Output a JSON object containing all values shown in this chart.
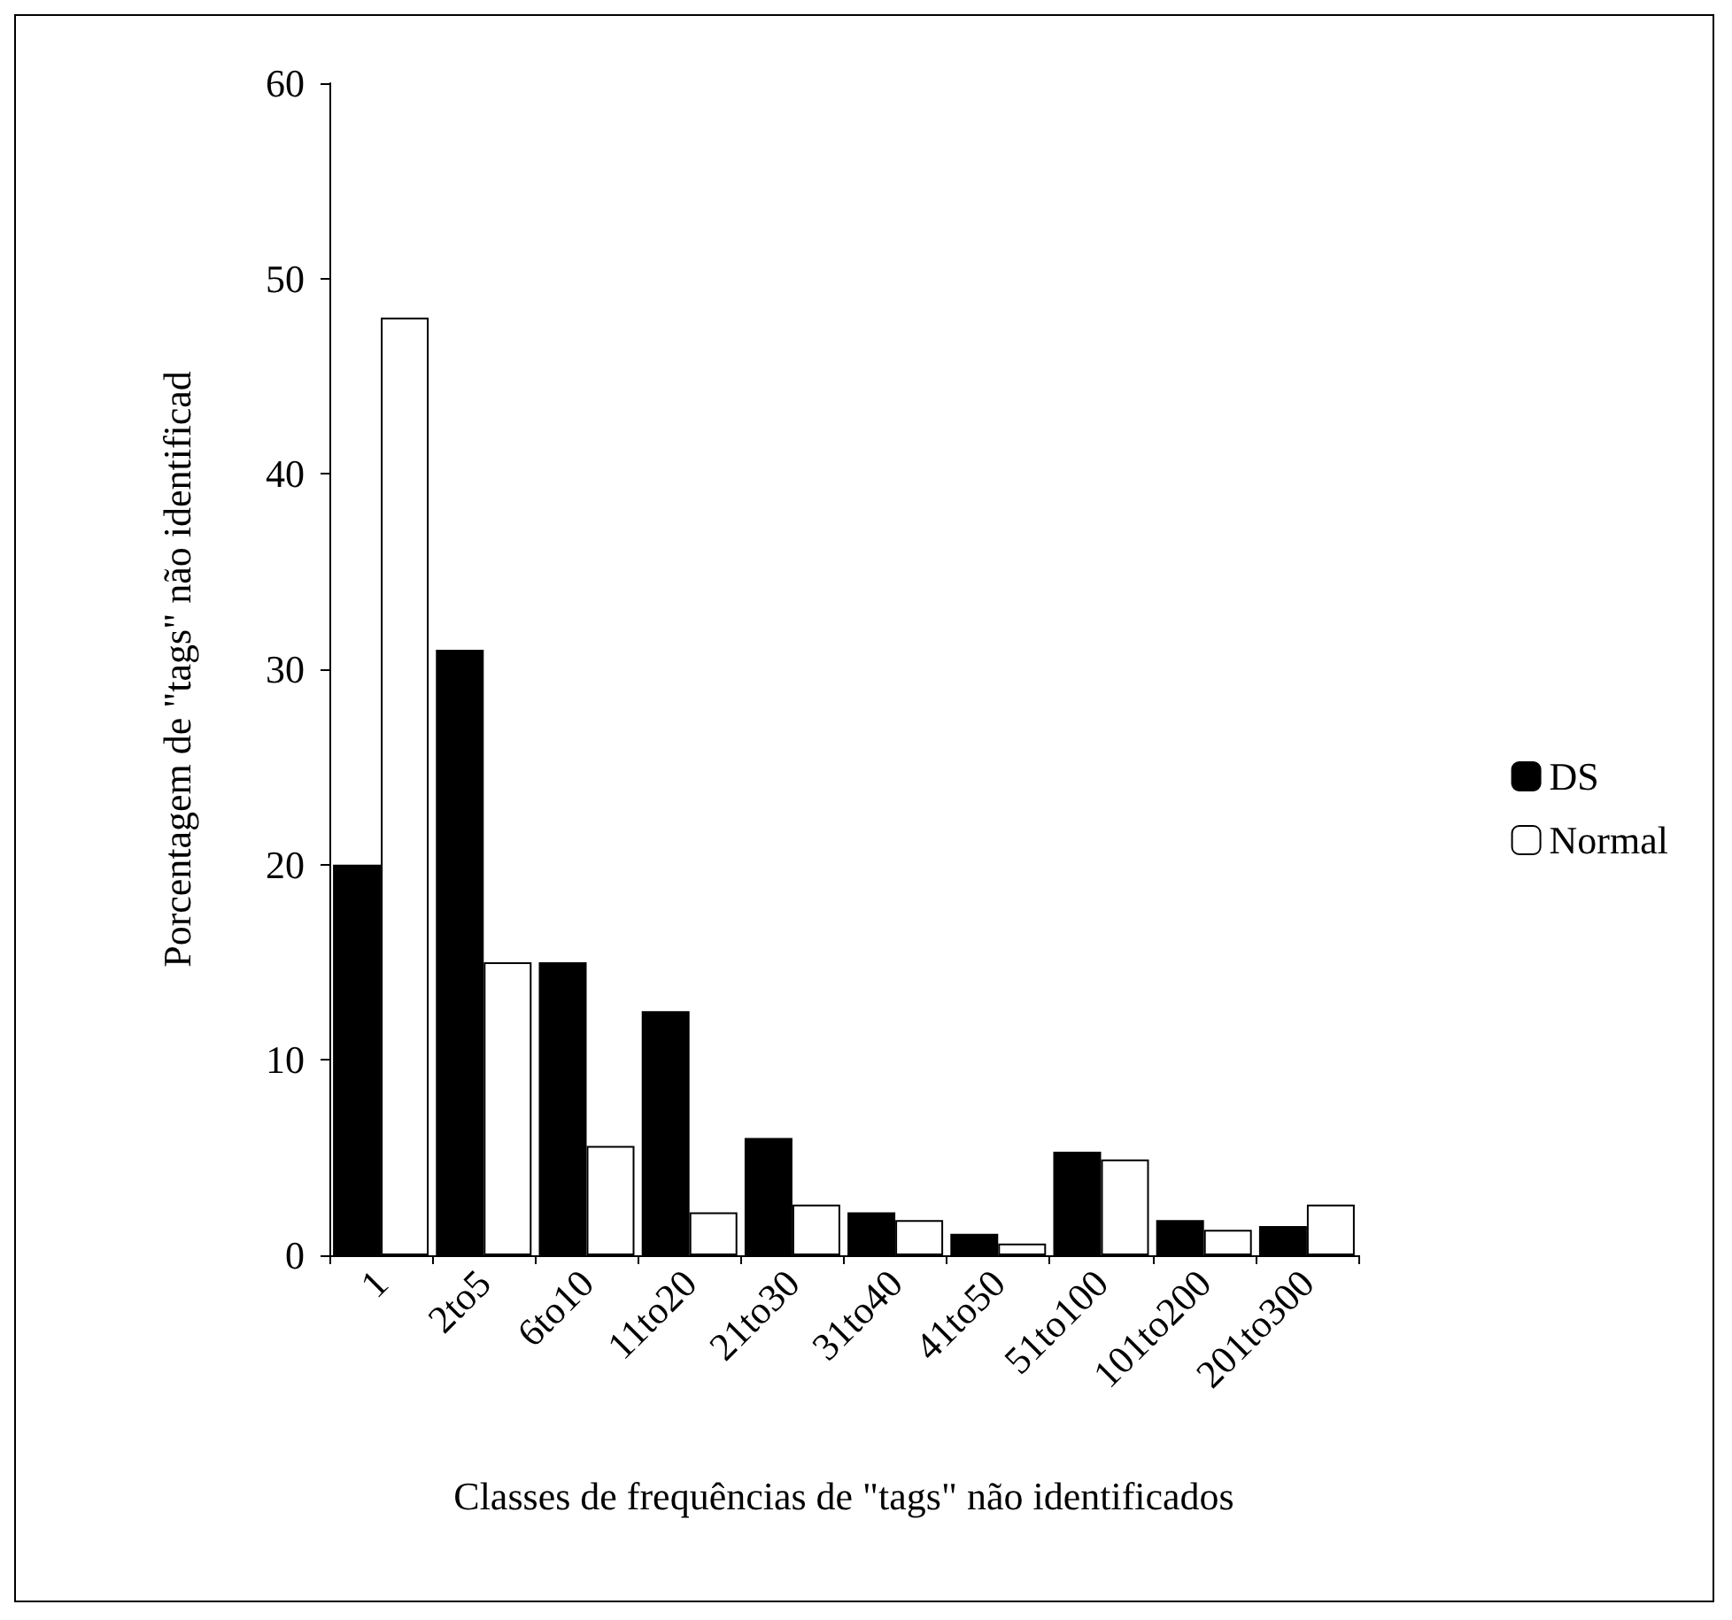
{
  "chart_data": {
    "type": "bar",
    "xlabel": "Classes de frequências de \"tags\" não identificados",
    "ylabel": "Porcentagem de \"tags\" não identificad",
    "categories": [
      "1",
      "2to5",
      "6to10",
      "11to20",
      "21to30",
      "31to40",
      "41to50",
      "51to100",
      "101to200",
      "201to300"
    ],
    "series": [
      {
        "name": "DS",
        "color": "#000000",
        "values": [
          20,
          31,
          15,
          12.5,
          6,
          2.2,
          1.1,
          5.3,
          1.8,
          1.5
        ]
      },
      {
        "name": "Normal",
        "color": "#ffffff",
        "values": [
          48,
          15,
          5.6,
          2.2,
          2.6,
          1.8,
          0.6,
          4.9,
          1.3,
          2.6
        ]
      }
    ],
    "ylim": [
      0,
      60
    ],
    "yticks": [
      0,
      10,
      20,
      30,
      40,
      50,
      60
    ],
    "grid": false,
    "legend": "right"
  }
}
